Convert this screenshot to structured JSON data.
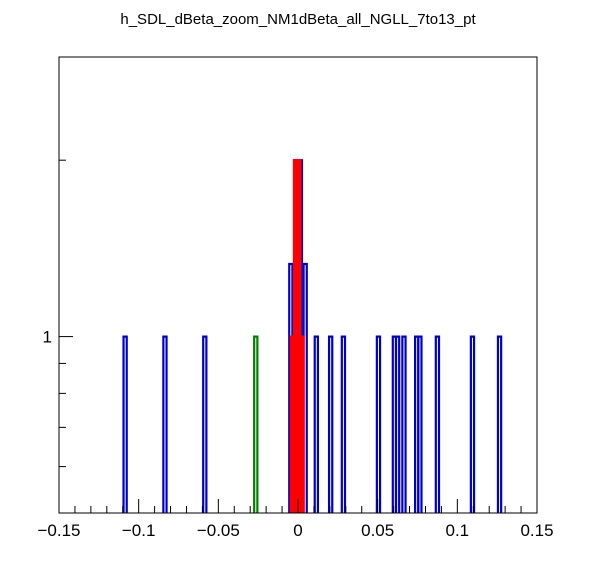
{
  "chart_data": {
    "type": "bar",
    "title": "h_SDL_dBeta_zoom_NM1dBeta_all_NGLL_7to13_pt",
    "xlabel": "",
    "ylabel": "",
    "xlim": [
      -0.15,
      0.15
    ],
    "y_scale": "log",
    "ylim": [
      0.5,
      3.0
    ],
    "x_ticks": [
      {
        "value": -0.15,
        "label": "−0.15"
      },
      {
        "value": -0.1,
        "label": "−0.1"
      },
      {
        "value": -0.05,
        "label": "−0.05"
      },
      {
        "value": 0,
        "label": "0"
      },
      {
        "value": 0.05,
        "label": "0.05"
      },
      {
        "value": 0.1,
        "label": "0.1"
      },
      {
        "value": 0.15,
        "label": "0.15"
      }
    ],
    "y_ticks": [
      {
        "value": 1,
        "label": "1"
      }
    ],
    "grid": false,
    "series": [
      {
        "color": "#0000cc",
        "bars": [
          {
            "x": -0.1085,
            "y": 1
          },
          {
            "x": -0.0835,
            "y": 1
          },
          {
            "x": -0.0585,
            "y": 1
          },
          {
            "x": -0.0045,
            "y": 1.33
          },
          {
            "x": -0.0015,
            "y": 2.0
          },
          {
            "x": 0.0015,
            "y": 2.0
          },
          {
            "x": 0.0045,
            "y": 1.33
          },
          {
            "x": 0.0115,
            "y": 1
          },
          {
            "x": 0.0205,
            "y": 1
          },
          {
            "x": 0.0285,
            "y": 1
          },
          {
            "x": 0.0505,
            "y": 1
          },
          {
            "x": 0.0605,
            "y": 1
          },
          {
            "x": 0.0625,
            "y": 1
          },
          {
            "x": 0.0665,
            "y": 1
          },
          {
            "x": 0.0745,
            "y": 1
          },
          {
            "x": 0.0765,
            "y": 1
          },
          {
            "x": 0.0875,
            "y": 1
          },
          {
            "x": 0.1095,
            "y": 1
          },
          {
            "x": 0.1265,
            "y": 1
          }
        ]
      },
      {
        "color": "#008000",
        "bars": [
          {
            "x": -0.0265,
            "y": 1
          }
        ]
      },
      {
        "color": "#ff0000",
        "bars": [
          {
            "x": -0.0035,
            "y": 1
          },
          {
            "x": -0.0015,
            "y": 2.0
          },
          {
            "x": 0.0005,
            "y": 2.0
          },
          {
            "x": 0.0025,
            "y": 1
          }
        ]
      }
    ]
  }
}
